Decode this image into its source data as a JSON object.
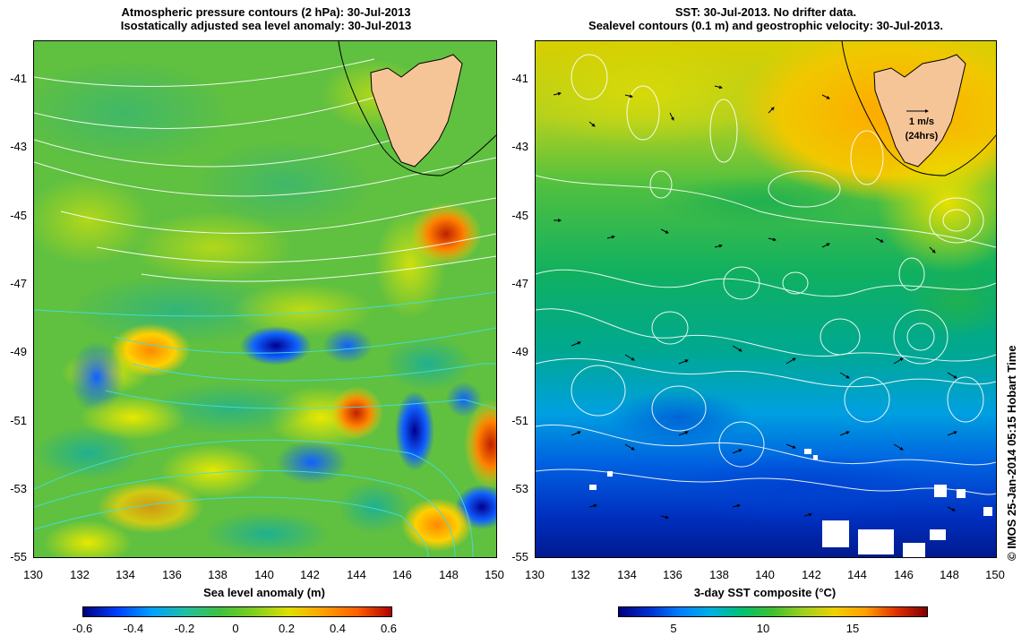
{
  "left_panel": {
    "title_line1": "Atmospheric pressure contours (2 hPa): 30-Jul-2013",
    "title_line2": "Isostatically adjusted sea level anomaly: 30-Jul-2013",
    "x_label": "Sea level anomaly (m)",
    "x_ticks": [
      "130",
      "132",
      "134",
      "136",
      "138",
      "140",
      "142",
      "144",
      "146",
      "148",
      "150"
    ],
    "y_ticks": [
      "-41",
      "-43",
      "-45",
      "-47",
      "-49",
      "-51",
      "-53",
      "-55"
    ],
    "colorbar_ticks": [
      "-0.6",
      "-0.4",
      "-0.2",
      "0",
      "0.2",
      "0.4",
      "0.6"
    ]
  },
  "right_panel": {
    "title_line1": "SST: 30-Jul-2013. No drifter data.",
    "title_line2": "Sealevel contours (0.1 m) and geostrophic velocity: 30-Jul-2013.",
    "x_label": "3-day SST composite (°C)",
    "x_ticks": [
      "130",
      "132",
      "134",
      "136",
      "138",
      "140",
      "142",
      "144",
      "146",
      "148",
      "150"
    ],
    "y_ticks": [
      "-41",
      "-43",
      "-45",
      "-47",
      "-49",
      "-51",
      "-53",
      "-55"
    ],
    "colorbar_ticks": [
      "5",
      "10",
      "15"
    ],
    "velocity_legend_value": "1 m/s",
    "velocity_legend_time": "(24hrs)"
  },
  "credit": "© IMOS 25-Jan-2014 05:15 Hobart Time",
  "colors": {
    "land": "#f6c597",
    "sla_colormap": [
      "#00007f",
      "#0040ff",
      "#00a0ff",
      "#20c0a0",
      "#40c040",
      "#80d020",
      "#e0e000",
      "#ffa000",
      "#ff6000",
      "#b00000"
    ],
    "sst_colormap": [
      "#00007f",
      "#0030d0",
      "#0080ff",
      "#00b0e0",
      "#00c070",
      "#40c030",
      "#a0d020",
      "#f0d000",
      "#ffa000",
      "#e03000",
      "#800000"
    ]
  }
}
